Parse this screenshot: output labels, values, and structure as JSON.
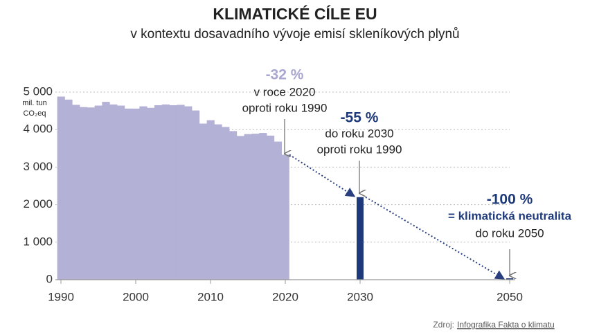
{
  "chart_data": {
    "type": "bar",
    "title": "KLIMATICKÉ CÍLE EU",
    "subtitle": "v kontextu dosavadního vývoje emisí skleníkových plynů",
    "y_unit": [
      "mil. tun",
      "CO₂eq"
    ],
    "x": [
      1990,
      1991,
      1992,
      1993,
      1994,
      1995,
      1996,
      1997,
      1998,
      1999,
      2000,
      2001,
      2002,
      2003,
      2004,
      2005,
      2006,
      2007,
      2008,
      2009,
      2010,
      2011,
      2012,
      2013,
      2014,
      2015,
      2016,
      2017,
      2018,
      2019,
      2020
    ],
    "values": [
      4880,
      4800,
      4660,
      4600,
      4590,
      4640,
      4740,
      4670,
      4640,
      4560,
      4560,
      4620,
      4580,
      4650,
      4670,
      4650,
      4660,
      4620,
      4510,
      4160,
      4250,
      4140,
      4070,
      3960,
      3830,
      3880,
      3890,
      3910,
      3840,
      3680,
      3330
    ],
    "color": "#b3b1d5",
    "targets": {
      "x": [
        2030,
        2050
      ],
      "values": [
        2200,
        0
      ],
      "color": "#1f3a7a"
    },
    "xlim": [
      1990,
      2050
    ],
    "xticks": [
      1990,
      2000,
      2010,
      2020,
      2030,
      2050
    ],
    "ylim": [
      0,
      5000
    ],
    "yticks": [
      0,
      {
        "value": 1000,
        "label": "1 000"
      },
      {
        "value": 2000,
        "label": "2 000"
      },
      {
        "value": 3000,
        "label": "3 000"
      },
      {
        "value": 4000,
        "label": "4 000"
      },
      {
        "value": 5000,
        "label": "5 000"
      }
    ],
    "grid": true,
    "annotations": [
      {
        "lines": [
          "-32 %",
          "v roce 2020",
          "oproti roku 1990"
        ],
        "color": "#a9a6d1"
      },
      {
        "lines": [
          "-55 %",
          "do roku 2030",
          "oproti roku 1990"
        ],
        "color": "#1f3a7a"
      },
      {
        "lines": [
          "-100 %",
          "= klimatická neutralita",
          "do roku 2050"
        ],
        "color": "#1f3a7a"
      }
    ],
    "source": {
      "label": "Zdroj:",
      "link": "Infografika Fakta o klimatu"
    }
  }
}
